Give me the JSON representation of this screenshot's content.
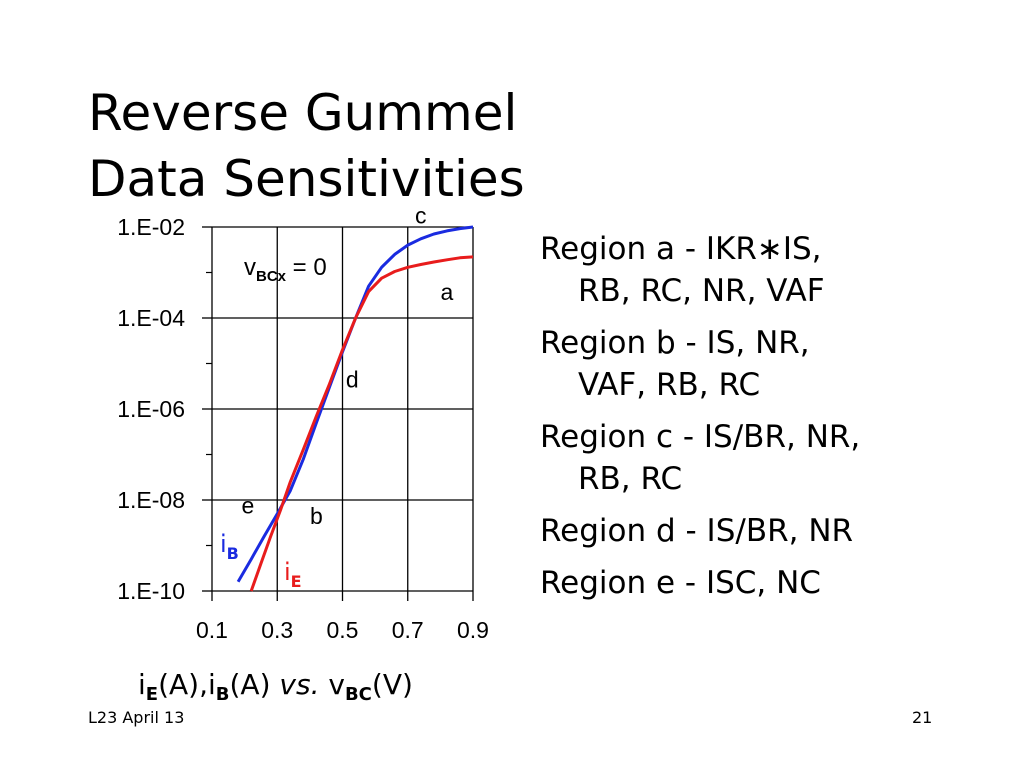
{
  "slide": {
    "title_line1": "Reverse Gummel",
    "title_line2": "Data Sensitivities",
    "footer_left": "L23 April 13",
    "page_number": "21"
  },
  "regions": [
    {
      "line1": "Region a - IKR∗IS,",
      "line2": "RB, RC, NR, VAF"
    },
    {
      "line1": "Region b - IS, NR,",
      "line2": "VAF, RB, RC"
    },
    {
      "line1": "Region c - IS/BR, NR,",
      "line2": "RB, RC"
    },
    {
      "line1": "Region d - IS/BR, NR",
      "line2": ""
    },
    {
      "line1": "Region e - ISC, NC",
      "line2": ""
    }
  ],
  "xlabel": {
    "i": "i",
    "e_sub": "E",
    "mid": "(A),i",
    "b_sub": "B",
    "tail": "(A) ",
    "vs": "vs.",
    "v": " v",
    "bc_sub": "BC",
    "unit": "(V)"
  },
  "chart_data": {
    "type": "line",
    "log_y": true,
    "xlim": [
      0.1,
      0.9
    ],
    "ylim": [
      1e-10,
      0.01
    ],
    "grid": true,
    "x_ticks": [
      "0.1",
      "0.3",
      "0.5",
      "0.7",
      "0.9"
    ],
    "y_ticks": [
      "1.E-10",
      "1.E-08",
      "1.E-06",
      "1.E-04",
      "1.E-02"
    ],
    "condition_label": {
      "prefix": "v",
      "sub": "BCx",
      "suffix": " = 0"
    },
    "series": [
      {
        "name": "iB",
        "name_main": "i",
        "name_sub": "B",
        "color": "#1a2be0",
        "x": [
          0.18,
          0.22,
          0.26,
          0.3,
          0.34,
          0.38,
          0.42,
          0.46,
          0.5,
          0.54,
          0.58,
          0.62,
          0.66,
          0.7,
          0.74,
          0.78,
          0.82,
          0.86,
          0.9
        ],
        "y": [
          1.6e-10,
          5e-10,
          1.6e-09,
          5e-09,
          1.6e-08,
          8e-08,
          5e-07,
          3e-06,
          1.8e-05,
          0.0001,
          0.0005,
          0.0013,
          0.0025,
          0.004,
          0.0055,
          0.007,
          0.0082,
          0.0092,
          0.01
        ]
      },
      {
        "name": "iE",
        "name_main": "i",
        "name_sub": "E",
        "color": "#e81c1c",
        "x": [
          0.22,
          0.25,
          0.28,
          0.31,
          0.34,
          0.38,
          0.42,
          0.46,
          0.5,
          0.54,
          0.58,
          0.62,
          0.66,
          0.7,
          0.74,
          0.78,
          0.82,
          0.86,
          0.9
        ],
        "y": [
          1e-10,
          4e-10,
          1.6e-09,
          6e-09,
          2.5e-08,
          1.3e-07,
          7e-07,
          3.5e-06,
          2e-05,
          0.0001,
          0.00038,
          0.00075,
          0.00105,
          0.0013,
          0.0015,
          0.0017,
          0.0019,
          0.0021,
          0.0022
        ]
      }
    ],
    "annotations": [
      {
        "text": "c",
        "x": 0.74,
        "y": 0.012
      },
      {
        "text": "a",
        "x": 0.82,
        "y": 0.00025
      },
      {
        "text": "d",
        "x": 0.53,
        "y": 3e-06
      },
      {
        "text": "e",
        "x": 0.21,
        "y": 5e-09
      },
      {
        "text": "b",
        "x": 0.42,
        "y": 3e-09
      }
    ]
  }
}
